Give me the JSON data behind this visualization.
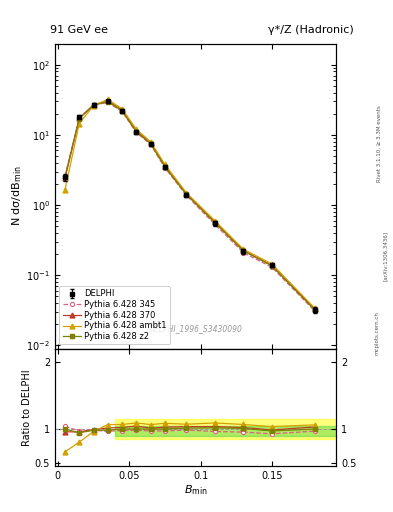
{
  "title_left": "91 GeV ee",
  "title_right": "γ*/Z (Hadronic)",
  "ylabel_main": "N dσ/dB_min",
  "ylabel_ratio": "Ratio to DELPHI",
  "xlabel": "B_min",
  "watermark": "DELPHI_1996_S3430090",
  "right_label1": "Rivet 3.1.10, ≥ 3.3M events",
  "right_label2": "[arXiv:1306.3436]",
  "right_label3": "mcplots.cern.ch",
  "ylim_main": [
    0.009,
    200
  ],
  "ylim_ratio": [
    0.45,
    2.2
  ],
  "xmin": -0.002,
  "xmax": 0.195,
  "x_data": [
    0.005,
    0.015,
    0.025,
    0.035,
    0.045,
    0.055,
    0.065,
    0.075,
    0.09,
    0.11,
    0.13,
    0.15,
    0.18
  ],
  "delphi_y": [
    2.5,
    18.0,
    27.0,
    30.0,
    22.0,
    11.0,
    7.5,
    3.5,
    1.4,
    0.55,
    0.22,
    0.14,
    0.032
  ],
  "delphi_yerr": [
    0.3,
    1.0,
    1.5,
    1.5,
    1.2,
    0.7,
    0.5,
    0.25,
    0.1,
    0.04,
    0.02,
    0.01,
    0.003
  ],
  "py345_y": [
    2.6,
    17.5,
    26.5,
    29.0,
    21.5,
    10.8,
    7.3,
    3.4,
    1.38,
    0.53,
    0.21,
    0.13,
    0.031
  ],
  "py370_y": [
    2.4,
    17.2,
    26.8,
    30.5,
    22.5,
    11.5,
    7.6,
    3.6,
    1.45,
    0.57,
    0.225,
    0.138,
    0.033
  ],
  "pyambt1_y": [
    1.65,
    14.5,
    26.0,
    32.0,
    23.5,
    12.0,
    8.0,
    3.8,
    1.5,
    0.6,
    0.235,
    0.145,
    0.034
  ],
  "pyz2_y": [
    2.5,
    17.0,
    26.5,
    29.5,
    22.0,
    11.0,
    7.5,
    3.5,
    1.42,
    0.56,
    0.222,
    0.136,
    0.032
  ],
  "color_delphi": "#000000",
  "color_py345": "#e06080",
  "color_py370": "#c0392b",
  "color_pyambt1": "#d4a000",
  "color_pyz2": "#808000",
  "bg_color": "#ffffff",
  "ratio_band_green_lo": 0.9,
  "ratio_band_green_hi": 1.05,
  "ratio_band_yellow_lo": 0.85,
  "ratio_band_yellow_hi": 1.15,
  "ratio_band_xstart": 0.04
}
